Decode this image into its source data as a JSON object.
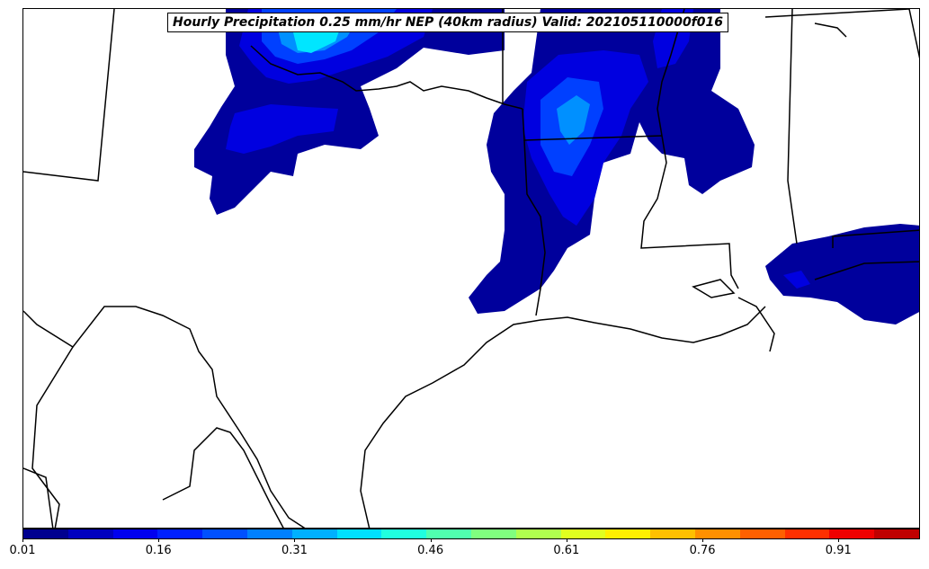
{
  "title": "Hourly Precipitation 0.25 mm/hr NEP (40km radius) Valid: 202105110000f016",
  "colorbar": {
    "ticks": [
      "0.01",
      "0.16",
      "0.31",
      "0.46",
      "0.61",
      "0.76",
      "0.91"
    ],
    "min": 0.01,
    "max": 1.0,
    "colors": [
      "#00008f",
      "#0000bf",
      "#0000ef",
      "#0020ff",
      "#0050ff",
      "#0080ff",
      "#00b0ff",
      "#00e0ff",
      "#20ffdf",
      "#50ffaf",
      "#80ff7f",
      "#b0ff4f",
      "#e0ff1f",
      "#ffef00",
      "#ffc000",
      "#ff9000",
      "#ff6000",
      "#ff3000",
      "#ef0000",
      "#bf0000"
    ]
  },
  "map_regions": [
    "light-precip-blob-oklahoma",
    "precip-blob-arkansas",
    "precip-blob-alabama-gulf"
  ],
  "colors": {
    "level1": "#00009c",
    "level2": "#0000e0",
    "level3": "#0040ff",
    "level4": "#0090ff",
    "level5": "#00e6ff"
  }
}
